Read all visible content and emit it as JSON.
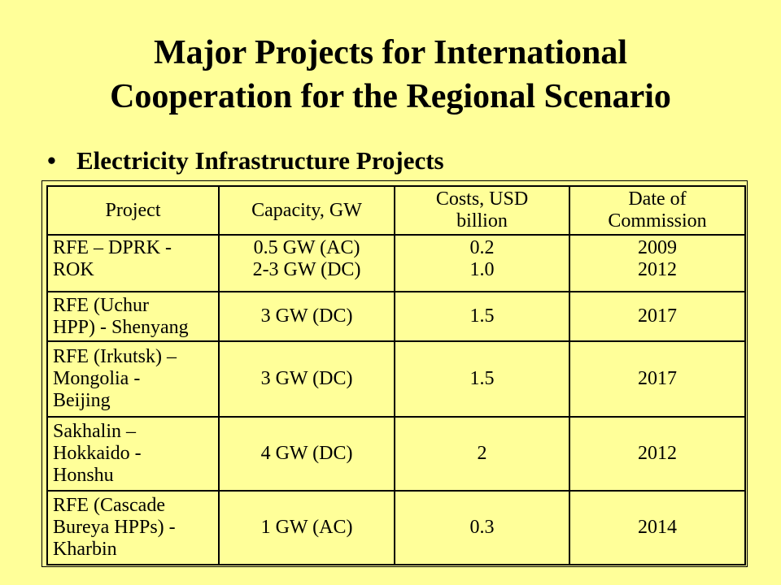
{
  "title": {
    "line1": "Major Projects for International",
    "line2": "Cooperation for the Regional Scenario"
  },
  "bullet": {
    "marker": "•",
    "text": "Electricity Infrastructure Projects"
  },
  "table": {
    "headers": [
      [
        "Project"
      ],
      [
        "Capacity, GW"
      ],
      [
        "Costs, USD",
        "billion"
      ],
      [
        "Date of",
        "Commission"
      ]
    ],
    "rows": [
      {
        "project": [
          "RFE – DPRK -",
          "ROK"
        ],
        "capacity": [
          "0.5 GW (AC)",
          "2-3 GW (DC)"
        ],
        "cost": [
          "0.2",
          "1.0"
        ],
        "date": [
          "2009",
          "2012"
        ]
      },
      {
        "project": [
          "RFE (Uchur",
          "HPP) - Shenyang"
        ],
        "capacity": [
          "3 GW (DC)"
        ],
        "cost": [
          "1.5"
        ],
        "date": [
          "2017"
        ]
      },
      {
        "project": [
          "RFE (Irkutsk) –",
          "Mongolia -",
          "Beijing"
        ],
        "capacity": [
          "3 GW (DC)"
        ],
        "cost": [
          "1.5"
        ],
        "date": [
          "2017"
        ]
      },
      {
        "project": [
          "Sakhalin –",
          "Hokkaido -",
          "Honshu"
        ],
        "capacity": [
          "4 GW (DC)"
        ],
        "cost": [
          "2"
        ],
        "date": [
          "2012"
        ]
      },
      {
        "project": [
          "RFE (Cascade",
          "Bureya HPPs) -",
          "Kharbin"
        ],
        "capacity": [
          "1 GW (AC)"
        ],
        "cost": [
          "0.3"
        ],
        "date": [
          "2014"
        ]
      }
    ]
  }
}
